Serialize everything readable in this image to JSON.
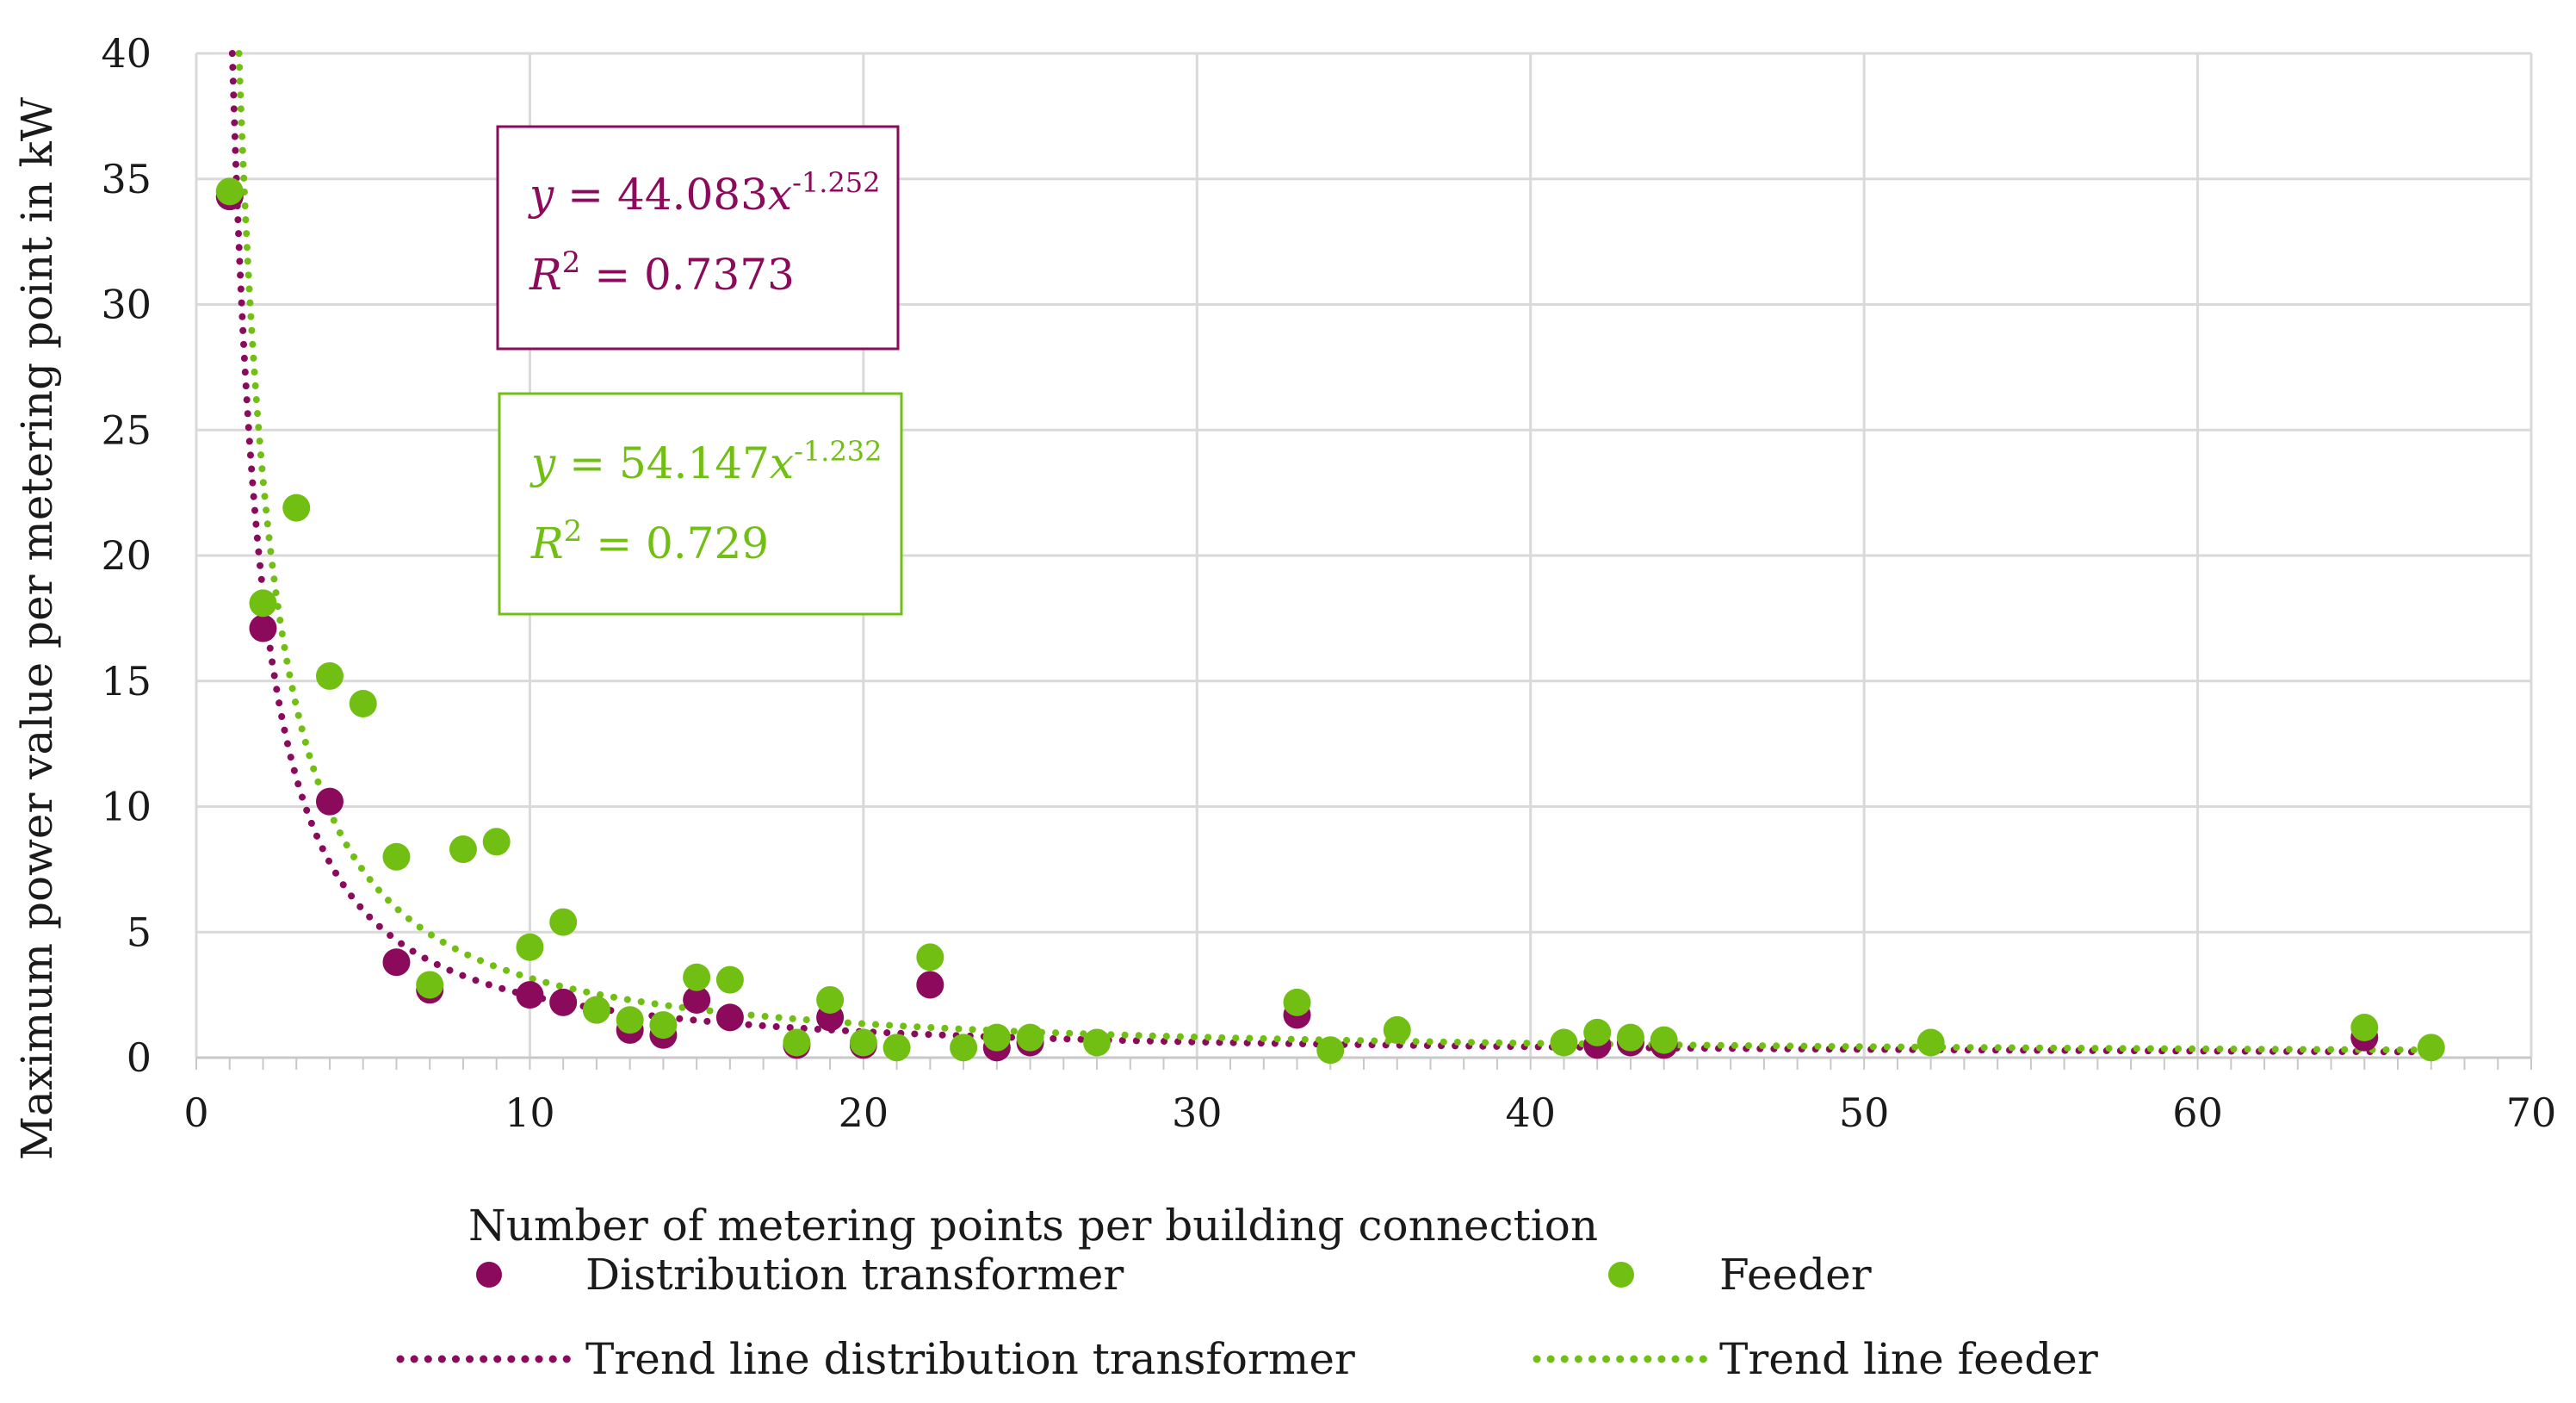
{
  "chart_data": {
    "type": "scatter",
    "xlabel": "Number of metering points per building connection",
    "ylabel": "Maximum power value per metering point in kW",
    "xlim": [
      0,
      70
    ],
    "ylim": [
      0,
      40
    ],
    "xticks": [
      "0",
      "10",
      "20",
      "30",
      "40",
      "50",
      "60",
      "70"
    ],
    "yticks": [
      "0",
      "5",
      "10",
      "15",
      "20",
      "25",
      "30",
      "35",
      "40"
    ],
    "grid": true,
    "legend_position": "bottom",
    "series": [
      {
        "name": "Distribution transformer",
        "color": "#8B0A5C",
        "points": [
          [
            1,
            34.3
          ],
          [
            2,
            17.1
          ],
          [
            4,
            10.2
          ],
          [
            6,
            3.8
          ],
          [
            7,
            2.7
          ],
          [
            10,
            2.5
          ],
          [
            11,
            2.2
          ],
          [
            12,
            1.9
          ],
          [
            13,
            1.1
          ],
          [
            14,
            0.9
          ],
          [
            15,
            2.3
          ],
          [
            16,
            1.6
          ],
          [
            18,
            0.5
          ],
          [
            19,
            1.6
          ],
          [
            20,
            0.5
          ],
          [
            22,
            2.9
          ],
          [
            24,
            0.4
          ],
          [
            25,
            0.6
          ],
          [
            33,
            1.7
          ],
          [
            42,
            0.5
          ],
          [
            43,
            0.6
          ],
          [
            44,
            0.5
          ],
          [
            65,
            0.8
          ]
        ]
      },
      {
        "name": "Feeder",
        "color": "#72BF14",
        "points": [
          [
            1,
            34.5
          ],
          [
            2,
            18.1
          ],
          [
            3,
            21.9
          ],
          [
            4,
            15.2
          ],
          [
            5,
            14.1
          ],
          [
            6,
            8.0
          ],
          [
            7,
            2.9
          ],
          [
            8,
            8.3
          ],
          [
            9,
            8.6
          ],
          [
            10,
            4.4
          ],
          [
            11,
            5.4
          ],
          [
            12,
            1.9
          ],
          [
            13,
            1.5
          ],
          [
            14,
            1.3
          ],
          [
            15,
            3.2
          ],
          [
            16,
            3.1
          ],
          [
            18,
            0.6
          ],
          [
            19,
            2.3
          ],
          [
            20,
            0.6
          ],
          [
            21,
            0.4
          ],
          [
            22,
            4.0
          ],
          [
            23,
            0.4
          ],
          [
            24,
            0.8
          ],
          [
            25,
            0.8
          ],
          [
            27,
            0.6
          ],
          [
            33,
            2.2
          ],
          [
            34,
            0.3
          ],
          [
            36,
            1.1
          ],
          [
            41,
            0.6
          ],
          [
            42,
            1.0
          ],
          [
            43,
            0.8
          ],
          [
            44,
            0.7
          ],
          [
            52,
            0.6
          ],
          [
            65,
            1.2
          ],
          [
            67,
            0.4
          ]
        ]
      }
    ],
    "trendlines": [
      {
        "name": "Trend line distribution transformer",
        "series": "Distribution transformer",
        "type": "power",
        "a": 44.083,
        "b": -1.252,
        "color": "#8B0A5C"
      },
      {
        "name": "Trend line feeder",
        "series": "Feeder",
        "type": "power",
        "a": 54.147,
        "b": -1.232,
        "color": "#72BF14"
      }
    ],
    "annotations": {
      "transformer_equation": {
        "y_prefix": "y",
        "eq_sign": " = ",
        "coef": "44.083",
        "x_var": "x",
        "exponent": "-1.252",
        "r_symbol": "R",
        "r_power": "2",
        "r_value": " = 0.7373"
      },
      "feeder_equation": {
        "y_prefix": "y",
        "eq_sign": " = ",
        "coef": "54.147",
        "x_var": "x",
        "exponent": "-1.232",
        "r_symbol": "R",
        "r_power": "2",
        "r_value": " = 0.729"
      }
    },
    "legend": [
      "Distribution transformer",
      "Feeder",
      "Trend line distribution transformer",
      "Trend line feeder"
    ]
  }
}
